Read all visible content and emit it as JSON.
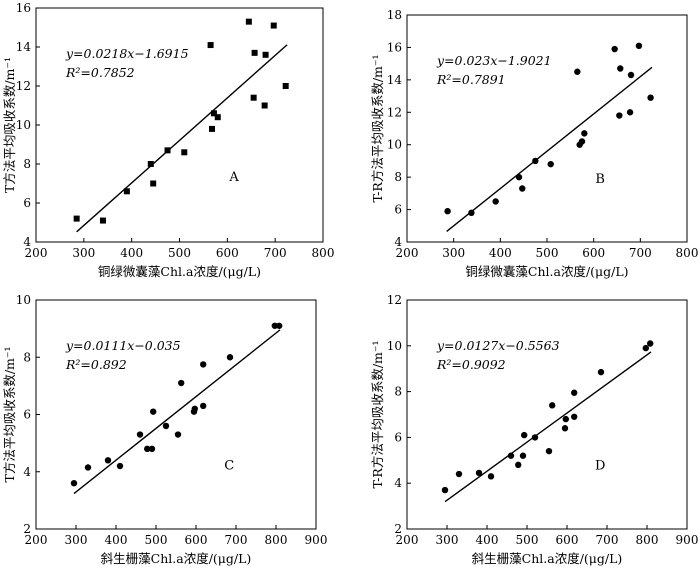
{
  "chart_data": [
    {
      "type": "scatter",
      "panel_label": "A",
      "xlabel": "铜绿微囊藻Chl.a浓度/(μg/L)",
      "ylabel": "T方法平均吸收系数/m⁻¹",
      "xlim": [
        200,
        800
      ],
      "ylim": [
        4,
        16
      ],
      "xticks": [
        200,
        300,
        400,
        500,
        600,
        700,
        800
      ],
      "yticks": [
        4,
        6,
        8,
        10,
        12,
        14,
        16
      ],
      "marker": "square",
      "equation": "y=0.0218x−1.6915",
      "r2": "R²=0.7852",
      "fit": {
        "slope": 0.0218,
        "intercept": -1.6915,
        "x_range": [
          285,
          725
        ]
      },
      "points": [
        [
          285,
          5.2
        ],
        [
          340,
          5.1
        ],
        [
          390,
          6.6
        ],
        [
          440,
          8.0
        ],
        [
          445,
          7.0
        ],
        [
          475,
          8.7
        ],
        [
          510,
          8.6
        ],
        [
          565,
          14.1
        ],
        [
          568,
          9.8
        ],
        [
          572,
          10.6
        ],
        [
          580,
          10.4
        ],
        [
          645,
          15.3
        ],
        [
          655,
          11.4
        ],
        [
          657,
          13.7
        ],
        [
          678,
          11.0
        ],
        [
          680,
          13.6
        ],
        [
          697,
          15.1
        ],
        [
          722,
          12.0
        ]
      ]
    },
    {
      "type": "scatter",
      "panel_label": "B",
      "xlabel": "铜绿微囊藻Chl.a浓度/(μg/L)",
      "ylabel": "T-R方法平均吸收系数/m⁻¹",
      "xlim": [
        200,
        800
      ],
      "ylim": [
        4,
        18
      ],
      "xticks": [
        200,
        300,
        400,
        500,
        600,
        700,
        800
      ],
      "yticks": [
        4,
        6,
        8,
        10,
        12,
        14,
        16,
        18
      ],
      "marker": "circle",
      "equation": "y=0.023x−1.9021",
      "r2": "R²=0.7891",
      "fit": {
        "slope": 0.023,
        "intercept": -1.9021,
        "x_range": [
          285,
          725
        ]
      },
      "points": [
        [
          287,
          5.9
        ],
        [
          338,
          5.8
        ],
        [
          390,
          6.5
        ],
        [
          440,
          8.0
        ],
        [
          447,
          7.3
        ],
        [
          475,
          9.0
        ],
        [
          508,
          8.8
        ],
        [
          565,
          14.5
        ],
        [
          570,
          10.0
        ],
        [
          575,
          10.2
        ],
        [
          580,
          10.7
        ],
        [
          645,
          15.9
        ],
        [
          655,
          11.8
        ],
        [
          657,
          14.7
        ],
        [
          678,
          12.0
        ],
        [
          680,
          14.3
        ],
        [
          697,
          16.1
        ],
        [
          722,
          12.9
        ]
      ]
    },
    {
      "type": "scatter",
      "panel_label": "C",
      "xlabel": "斜生栅藻Chl.a浓度/(μg/L)",
      "ylabel": "T方法平均吸收系数/m⁻¹",
      "xlim": [
        200,
        900
      ],
      "ylim": [
        2,
        10
      ],
      "xticks": [
        200,
        300,
        400,
        500,
        600,
        700,
        800,
        900
      ],
      "yticks": [
        2,
        4,
        6,
        8,
        10
      ],
      "marker": "circle",
      "equation": "y=0.0111x−0.035",
      "r2": "R²=0.892",
      "fit": {
        "slope": 0.0111,
        "intercept": -0.035,
        "x_range": [
          295,
          810
        ]
      },
      "points": [
        [
          295,
          3.6
        ],
        [
          330,
          4.15
        ],
        [
          380,
          4.4
        ],
        [
          410,
          4.2
        ],
        [
          460,
          5.3
        ],
        [
          478,
          4.8
        ],
        [
          490,
          4.8
        ],
        [
          493,
          6.1
        ],
        [
          525,
          5.6
        ],
        [
          555,
          5.3
        ],
        [
          563,
          7.1
        ],
        [
          595,
          6.1
        ],
        [
          597,
          6.2
        ],
        [
          618,
          7.75
        ],
        [
          618,
          6.3
        ],
        [
          685,
          8.0
        ],
        [
          797,
          9.1
        ],
        [
          808,
          9.1
        ]
      ]
    },
    {
      "type": "scatter",
      "panel_label": "D",
      "xlabel": "斜生栅藻Chl.a浓度/(μg/L)",
      "ylabel": "T-R方法平均吸收系数/m⁻¹",
      "xlim": [
        200,
        900
      ],
      "ylim": [
        2,
        12
      ],
      "xticks": [
        200,
        300,
        400,
        500,
        600,
        700,
        800,
        900
      ],
      "yticks": [
        2,
        4,
        6,
        8,
        10,
        12
      ],
      "marker": "circle",
      "equation": "y=0.0127x−0.5563",
      "r2": "R²=0.9092",
      "fit": {
        "slope": 0.0127,
        "intercept": -0.5563,
        "x_range": [
          295,
          810
        ]
      },
      "points": [
        [
          295,
          3.7
        ],
        [
          330,
          4.4
        ],
        [
          380,
          4.45
        ],
        [
          410,
          4.3
        ],
        [
          460,
          5.2
        ],
        [
          478,
          4.8
        ],
        [
          490,
          5.2
        ],
        [
          493,
          6.1
        ],
        [
          520,
          6.0
        ],
        [
          555,
          5.4
        ],
        [
          563,
          7.4
        ],
        [
          595,
          6.4
        ],
        [
          597,
          6.8
        ],
        [
          618,
          7.95
        ],
        [
          618,
          6.9
        ],
        [
          685,
          8.85
        ],
        [
          797,
          9.9
        ],
        [
          808,
          10.1
        ]
      ]
    }
  ]
}
